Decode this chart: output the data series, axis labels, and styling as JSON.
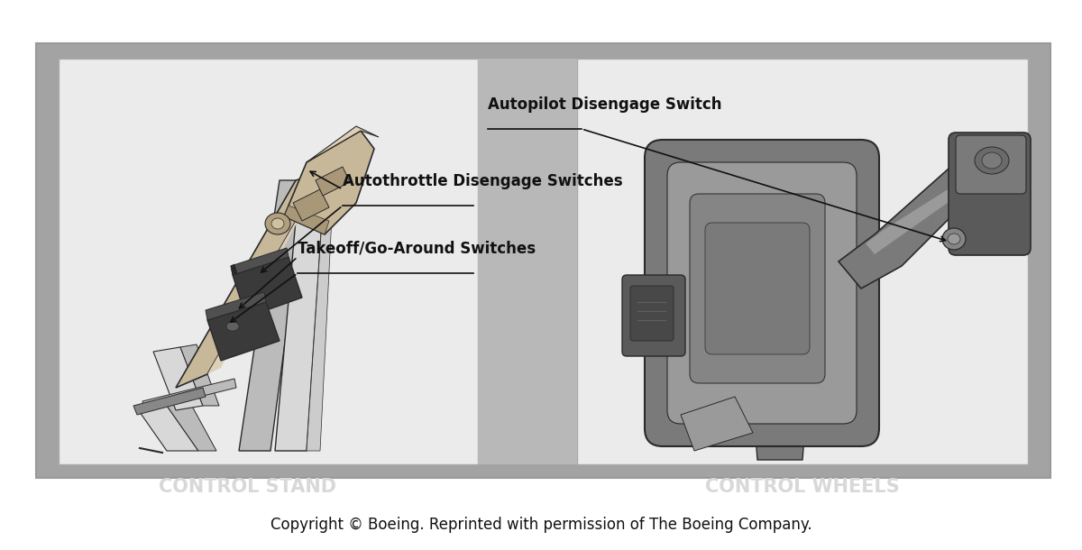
{
  "figure_width": 12.0,
  "figure_height": 6.1,
  "dpi": 100,
  "bg_color": "#ffffff",
  "outer_bg_color": "#a3a3a3",
  "left_panel_bg": "#ebebeb",
  "right_panel_bg": "#ebebeb",
  "center_strip_color": "#b8b8b8",
  "label_color": "#111111",
  "caption_color": "#111111",
  "panel_label_color": "#d8d8d8",
  "annotation_line_color": "#111111",
  "left_panel_label": "CONTROL STAND",
  "right_panel_label": "CONTROL WHEELS",
  "copyright_text": "Copyright © Boeing. Reprinted with permission of The Boeing Company.",
  "label_autopilot": "Autopilot Disengage Switch",
  "label_autothrottle": "Autothrottle Disengage Switches",
  "label_takeoff": "Takeoff/Go-Around Switches"
}
